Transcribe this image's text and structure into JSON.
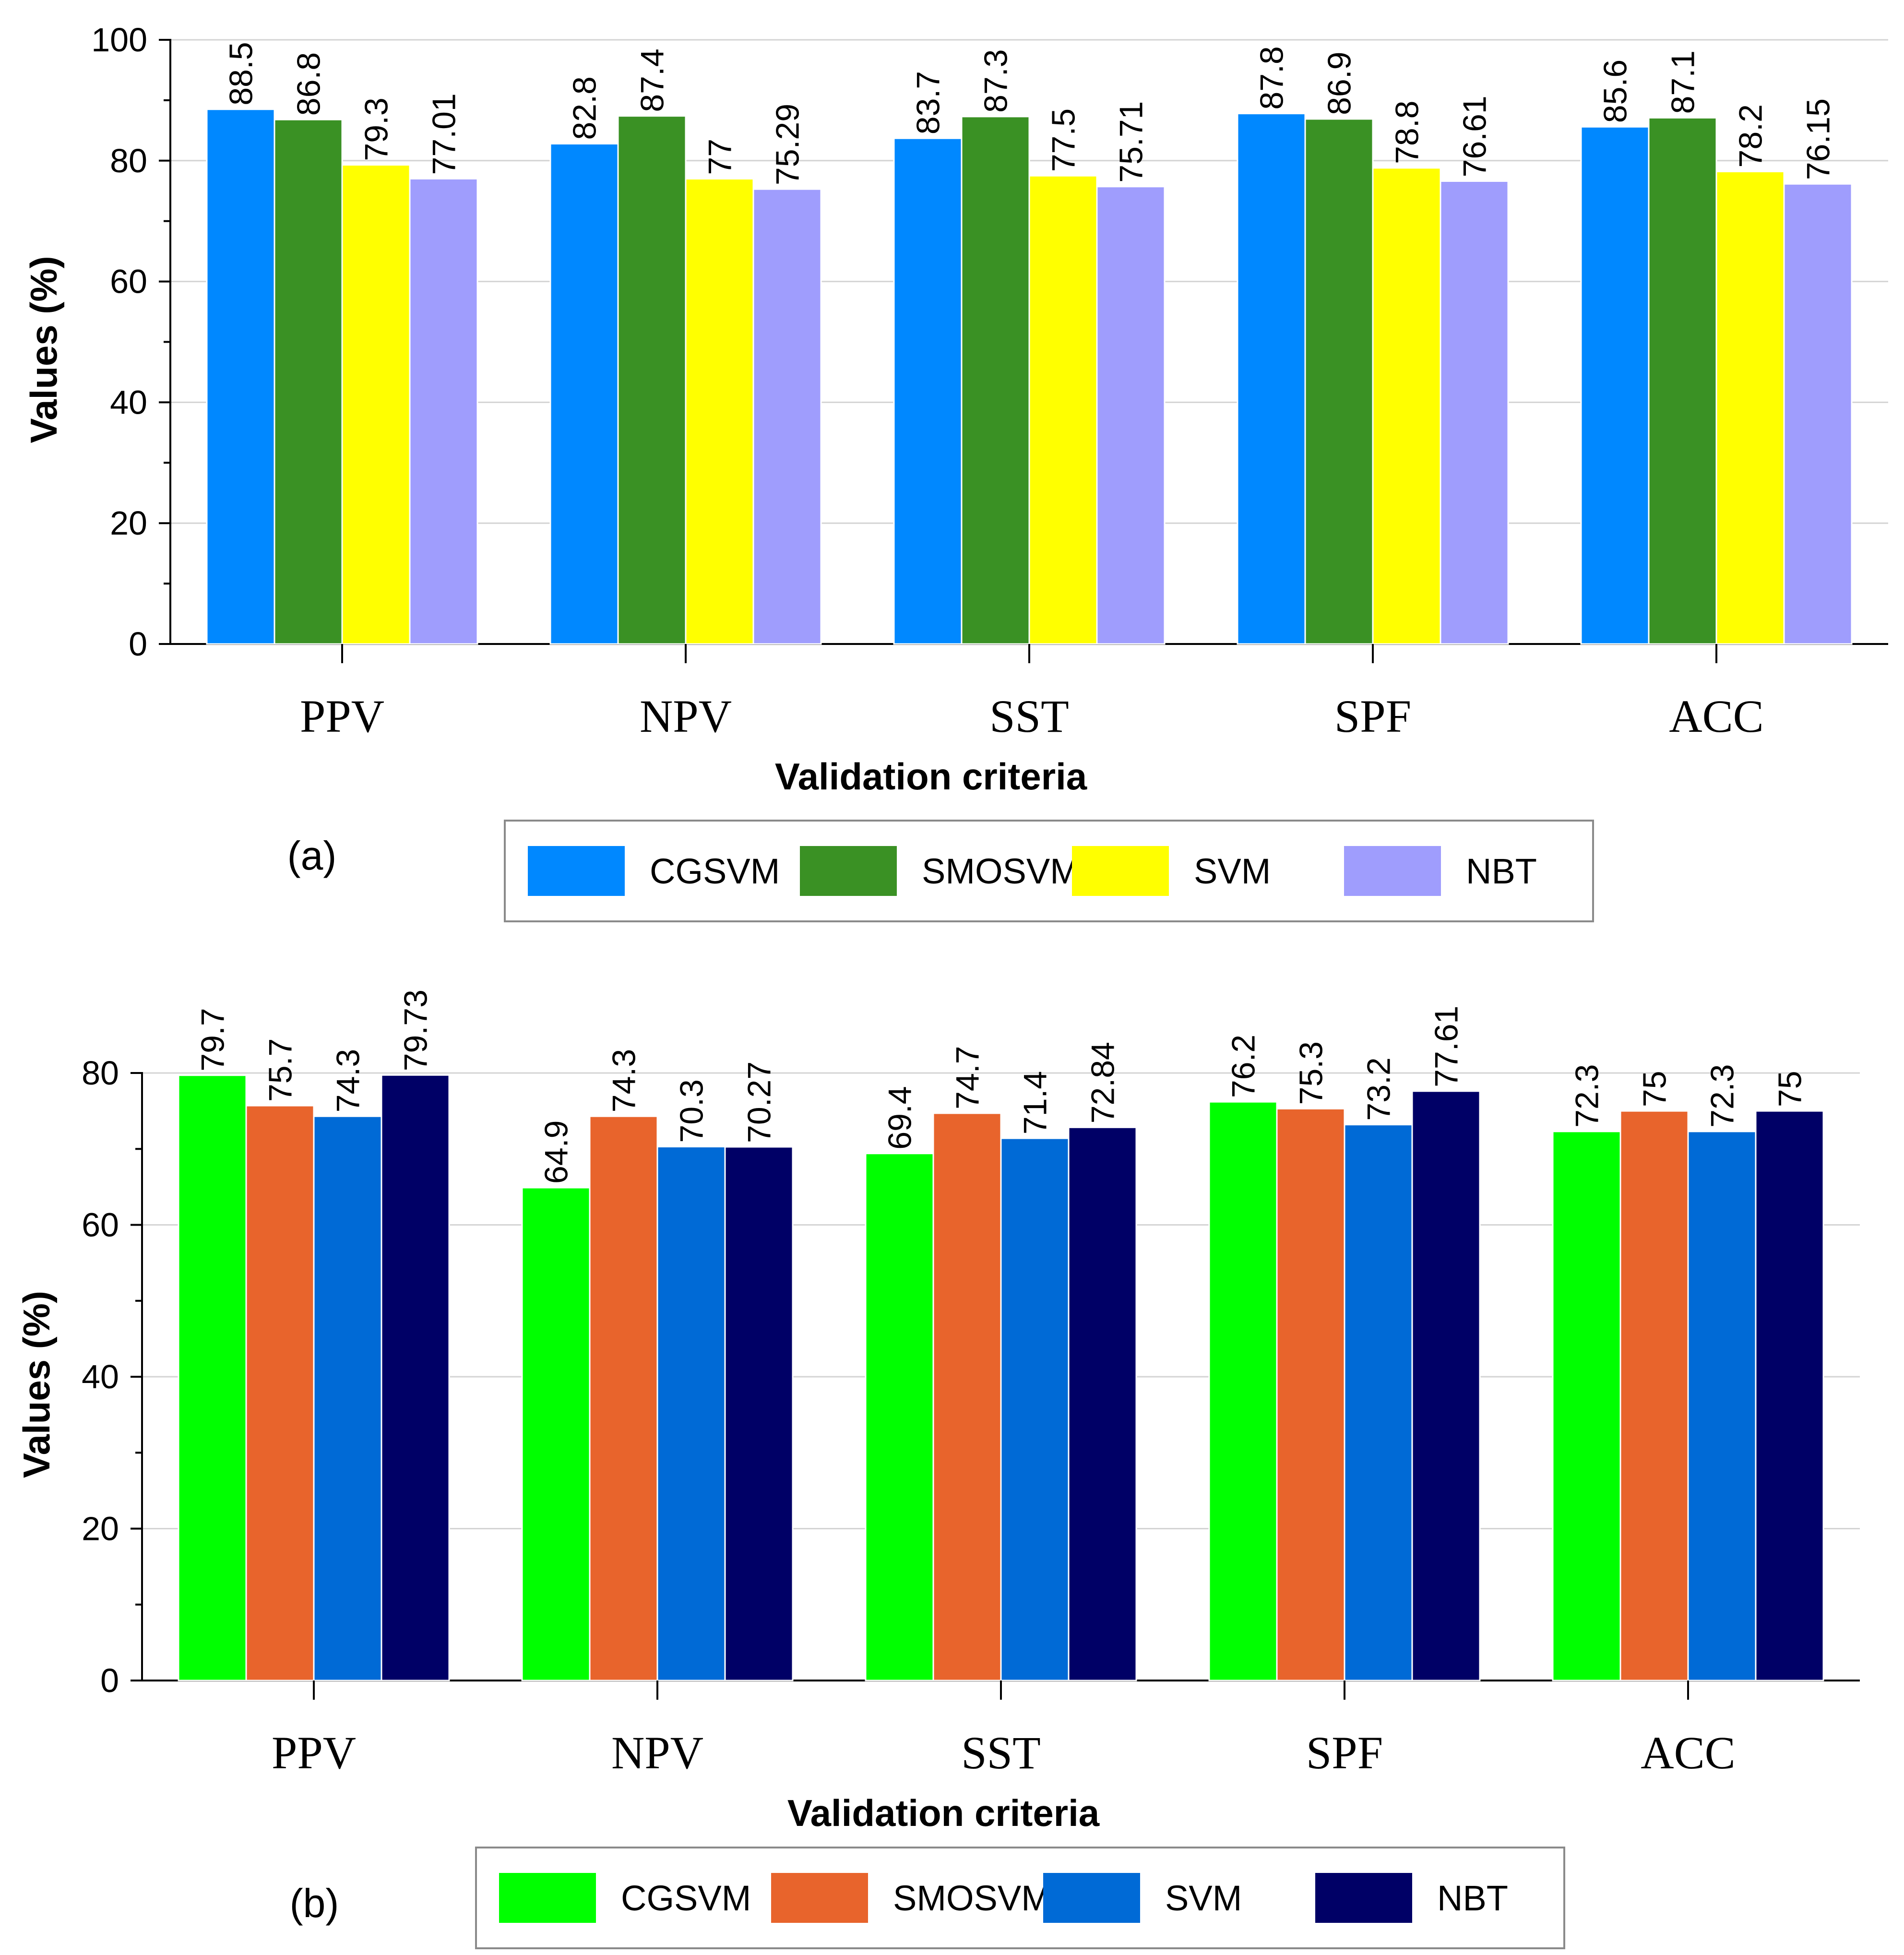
{
  "chart_data": [
    {
      "type": "bar",
      "panel_label": "(a)",
      "categories": [
        "PPV",
        "NPV",
        "SST",
        "SPF",
        "ACC"
      ],
      "series": [
        {
          "name": "CGSVM",
          "color": "#0088ff",
          "values": [
            88.5,
            82.8,
            83.7,
            87.8,
            85.6
          ],
          "labels": [
            "88.5",
            "82.8",
            "83.7",
            "87.8",
            "85.6"
          ]
        },
        {
          "name": "SMOSVM",
          "color": "#3a9124",
          "values": [
            86.8,
            87.4,
            87.3,
            86.9,
            87.1
          ],
          "labels": [
            "86.8",
            "87.4",
            "87.3",
            "86.9",
            "87.1"
          ]
        },
        {
          "name": "SVM",
          "color": "#ffff00",
          "values": [
            79.3,
            77,
            77.5,
            78.8,
            78.2
          ],
          "labels": [
            "79.3",
            "77",
            "77.5",
            "78.8",
            "78.2"
          ]
        },
        {
          "name": "NBT",
          "color": "#9f9dfd",
          "values": [
            77.01,
            75.29,
            75.71,
            76.61,
            76.15
          ],
          "labels": [
            "77.01",
            "75.29",
            "75.71",
            "76.61",
            "76.15"
          ]
        }
      ],
      "xlabel": "Validation criteria",
      "ylabel": "Values (%)",
      "ylim": [
        0,
        100
      ],
      "yticks": [
        "0",
        "20",
        "40",
        "60",
        "80",
        "100"
      ],
      "grid": true,
      "legend": "bottom"
    },
    {
      "type": "bar",
      "panel_label": "(b)",
      "categories": [
        "PPV",
        "NPV",
        "SST",
        "SPF",
        "ACC"
      ],
      "series": [
        {
          "name": "CGSVM",
          "color": "#00ff00",
          "values": [
            79.7,
            64.9,
            69.4,
            76.2,
            72.3
          ],
          "labels": [
            "79.7",
            "64.9",
            "69.4",
            "76.2",
            "72.3"
          ]
        },
        {
          "name": "SMOSVM",
          "color": "#e8642c",
          "values": [
            75.7,
            74.3,
            74.7,
            75.3,
            75
          ],
          "labels": [
            "75.7",
            "74.3",
            "74.7",
            "75.3",
            "75"
          ]
        },
        {
          "name": "SVM",
          "color": "#006ad6",
          "values": [
            74.3,
            70.3,
            71.4,
            73.2,
            72.3
          ],
          "labels": [
            "74.3",
            "70.3",
            "71.4",
            "73.2",
            "72.3"
          ]
        },
        {
          "name": "NBT",
          "color": "#000066",
          "values": [
            79.73,
            70.27,
            72.84,
            77.61,
            75
          ],
          "labels": [
            "79.73",
            "70.27",
            "72.84",
            "77.61",
            "75"
          ]
        }
      ],
      "xlabel": "Validation criteria",
      "ylabel": "Values (%)",
      "ylim": [
        0,
        80
      ],
      "yticks": [
        "0",
        "20",
        "40",
        "60",
        "80"
      ],
      "grid": true,
      "legend": "bottom"
    }
  ]
}
